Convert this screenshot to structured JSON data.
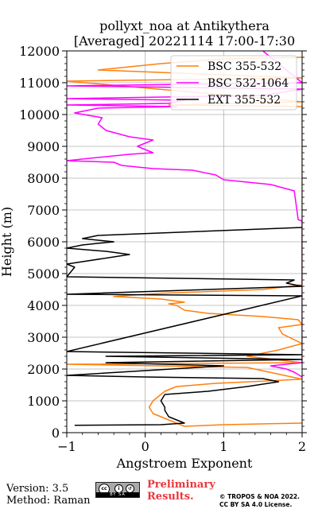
{
  "chart_data": {
    "type": "line",
    "title_line1": "pollyxt_noa at Antikythera",
    "title_line2": "[Averaged] 20221114 17:00-17:30",
    "xlabel": "Angstroem Exponent",
    "ylabel": "Height (m)",
    "xlim": [
      -1,
      2
    ],
    "ylim": [
      0,
      12000
    ],
    "xticks": [
      -1,
      0,
      1,
      2
    ],
    "xtick_labels": [
      "−1",
      "0",
      "1",
      "2"
    ],
    "yticks": [
      0,
      1000,
      2000,
      3000,
      4000,
      5000,
      6000,
      7000,
      8000,
      9000,
      10000,
      11000,
      12000
    ],
    "ytick_labels": [
      "0",
      "1000",
      "2000",
      "3000",
      "4000",
      "5000",
      "6000",
      "7000",
      "8000",
      "9000",
      "10000",
      "11000",
      "12000"
    ],
    "grid": true,
    "legend_position": "top-right",
    "series": [
      {
        "name": "BSC 355-532",
        "color": "#ff7f0e",
        "points": [
          [
            2.0,
            300
          ],
          [
            1.6,
            280
          ],
          [
            1.0,
            250
          ],
          [
            0.5,
            200
          ],
          [
            0.3,
            400
          ],
          [
            0.1,
            600
          ],
          [
            0.05,
            800
          ],
          [
            0.1,
            1000
          ],
          [
            0.15,
            1100
          ],
          [
            0.25,
            1300
          ],
          [
            0.4,
            1450
          ],
          [
            0.9,
            1550
          ],
          [
            1.5,
            1620
          ],
          [
            2.0,
            1680
          ],
          [
            1.3,
            2050
          ],
          [
            -1.0,
            2150
          ],
          [
            2.0,
            2200
          ],
          [
            1.3,
            2400
          ],
          [
            1.7,
            2600
          ],
          [
            2.0,
            2800
          ],
          [
            1.75,
            3100
          ],
          [
            1.7,
            3300
          ],
          [
            2.0,
            3400
          ],
          [
            1.95,
            3550
          ],
          [
            1.5,
            3650
          ],
          [
            0.8,
            3750
          ],
          [
            0.5,
            3850
          ],
          [
            0.4,
            4000
          ],
          [
            0.3,
            4050
          ],
          [
            0.5,
            4100
          ],
          [
            0.2,
            4200
          ],
          [
            -0.4,
            4280
          ],
          [
            0.2,
            4380
          ],
          [
            1.5,
            4500
          ],
          [
            2.0,
            4650
          ],
          [
            2.0,
            10250
          ],
          [
            0.3,
            10300
          ],
          [
            2.0,
            10400
          ],
          [
            -1.0,
            11050
          ],
          [
            0.5,
            11100
          ],
          [
            2.0,
            11150
          ],
          [
            -0.6,
            11400
          ],
          [
            0.2,
            11600
          ],
          [
            1.0,
            11750
          ],
          [
            2.0,
            11800
          ]
        ]
      },
      {
        "name": "BSC 532-1064",
        "color": "#ff00ff",
        "points": [
          [
            2.0,
            1750
          ],
          [
            1.9,
            1900
          ],
          [
            1.8,
            2000
          ],
          [
            1.6,
            2100
          ],
          [
            2.0,
            2200
          ],
          [
            2.0,
            6650
          ],
          [
            1.95,
            6700
          ],
          [
            1.9,
            7600
          ],
          [
            1.6,
            7800
          ],
          [
            1.0,
            7950
          ],
          [
            0.9,
            8100
          ],
          [
            0.6,
            8250
          ],
          [
            0.1,
            8300
          ],
          [
            -0.3,
            8400
          ],
          [
            -0.4,
            8500
          ],
          [
            -1.0,
            8550
          ],
          [
            -0.2,
            8750
          ],
          [
            0.1,
            8800
          ],
          [
            -0.1,
            9000
          ],
          [
            0.1,
            9200
          ],
          [
            -0.2,
            9300
          ],
          [
            -0.5,
            9500
          ],
          [
            -0.6,
            9700
          ],
          [
            -0.55,
            9900
          ],
          [
            -0.9,
            10050
          ],
          [
            -0.6,
            10200
          ],
          [
            0.4,
            10250
          ],
          [
            -1.0,
            10300
          ],
          [
            0.3,
            10350
          ],
          [
            0.5,
            10450
          ],
          [
            -1.0,
            10500
          ],
          [
            1.5,
            10600
          ],
          [
            2.0,
            10800
          ],
          [
            -1.0,
            10900
          ],
          [
            2.0,
            11000
          ],
          [
            1.5,
            12000
          ]
        ]
      },
      {
        "name": "EXT 355-532",
        "color": "#000000",
        "points": [
          [
            -0.9,
            230
          ],
          [
            0.2,
            250
          ],
          [
            0.5,
            300
          ],
          [
            0.3,
            500
          ],
          [
            0.25,
            700
          ],
          [
            0.25,
            800
          ],
          [
            0.2,
            1000
          ],
          [
            0.25,
            1200
          ],
          [
            0.8,
            1300
          ],
          [
            1.3,
            1450
          ],
          [
            1.7,
            1600
          ],
          [
            1.5,
            1700
          ],
          [
            0.0,
            1750
          ],
          [
            -1.0,
            1800
          ],
          [
            1.0,
            2100
          ],
          [
            -0.5,
            2200
          ],
          [
            2.0,
            2300
          ],
          [
            -0.5,
            2400
          ],
          [
            2.0,
            2450
          ],
          [
            -1.0,
            2550
          ],
          [
            2.0,
            4300
          ],
          [
            -1.0,
            4350
          ],
          [
            2.0,
            4600
          ],
          [
            1.8,
            4700
          ],
          [
            1.9,
            4800
          ],
          [
            -1.0,
            4900
          ],
          [
            -0.9,
            5200
          ],
          [
            -1.0,
            5300
          ],
          [
            -0.2,
            5600
          ],
          [
            -0.5,
            5700
          ],
          [
            -1.0,
            5800
          ],
          [
            -0.8,
            5900
          ],
          [
            -0.4,
            6000
          ],
          [
            -0.8,
            6100
          ],
          [
            -0.6,
            6200
          ],
          [
            2.0,
            6450
          ]
        ]
      }
    ]
  },
  "footer": {
    "version": "Version: 3.5",
    "method": "Method: Raman",
    "prelim_line1": "Preliminary",
    "prelim_line2": "Results.",
    "copyright_line1": "© TROPOS & NOA 2022.",
    "copyright_line2": "CC BY SA 4.0 License.",
    "cc_badge_text": "BY SA"
  }
}
